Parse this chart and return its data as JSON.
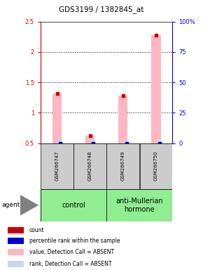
{
  "title": "GDS3199 / 1382845_at",
  "samples": [
    "GSM266747",
    "GSM266748",
    "GSM266749",
    "GSM266750"
  ],
  "control_label": "control",
  "treatment_label": "anti-Mullerian\nhormone",
  "ylim_left": [
    0.5,
    2.5
  ],
  "ylim_right": [
    0,
    100
  ],
  "yticks_left": [
    0.5,
    1.0,
    1.5,
    2.0,
    2.5
  ],
  "ytick_labels_left": [
    "0.5",
    "1",
    "1.5",
    "2",
    "2.5"
  ],
  "yticks_right": [
    0,
    25,
    50,
    75,
    100
  ],
  "ytick_labels_right": [
    "0",
    "25",
    "50",
    "75",
    "100%"
  ],
  "dotted_lines": [
    1.0,
    1.5,
    2.0
  ],
  "bar_values": [
    1.32,
    0.62,
    1.28,
    2.28
  ],
  "rank_values_pct": [
    3.0,
    3.0,
    3.0,
    3.0
  ],
  "bar_color_value": "#ffb6c1",
  "bar_color_rank": "#c8d8e8",
  "marker_color_red": "#cc0000",
  "marker_color_blue": "#0000cc",
  "sample_box_color": "#cccccc",
  "control_color": "#90ee90",
  "treatment_color": "#90ee90",
  "left_axis_color": "#cc0000",
  "right_axis_color": "#0000cc",
  "legend_items": [
    {
      "color": "#cc0000",
      "label": "count"
    },
    {
      "color": "#0000cc",
      "label": "percentile rank within the sample"
    },
    {
      "color": "#ffb6c1",
      "label": "value, Detection Call = ABSENT"
    },
    {
      "color": "#c8d8e8",
      "label": "rank, Detection Call = ABSENT"
    }
  ],
  "agent_label": "agent"
}
